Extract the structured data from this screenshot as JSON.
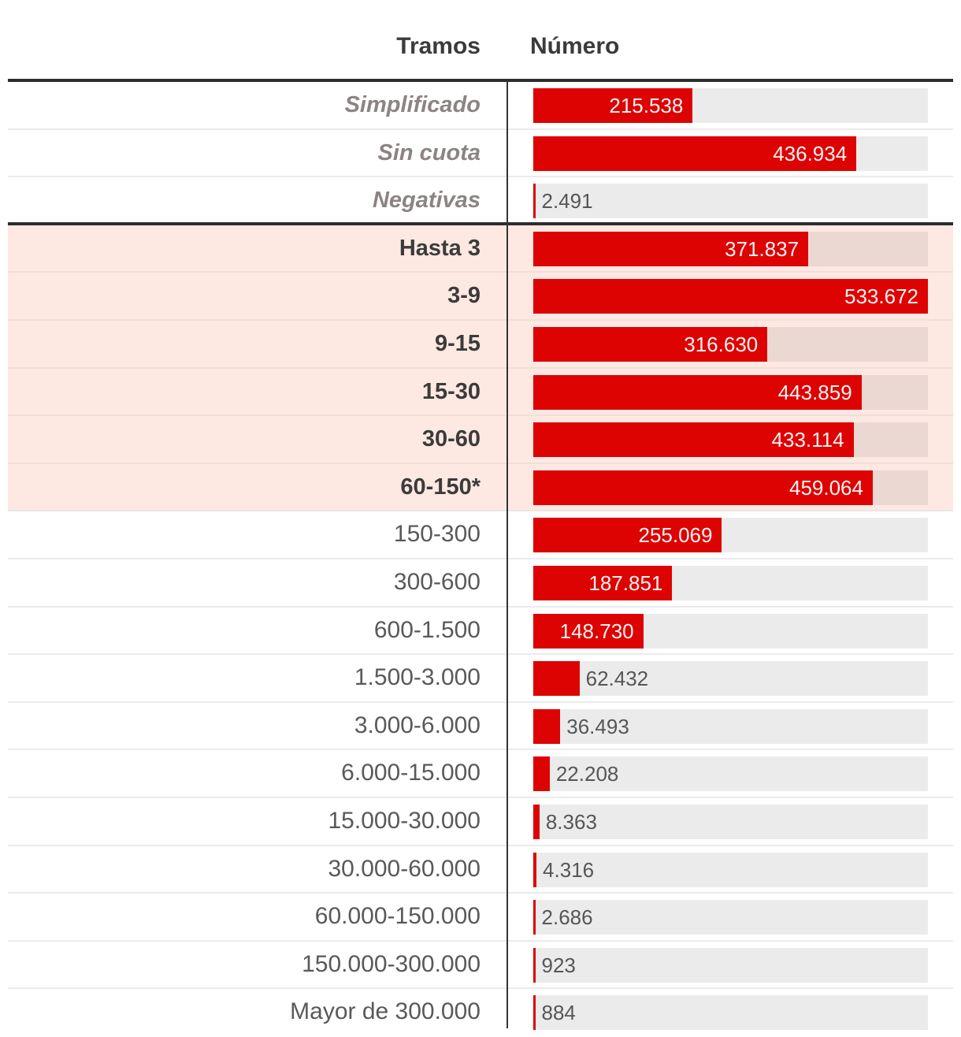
{
  "header": {
    "tramos": "Tramos",
    "numero": "Número"
  },
  "chart_data": {
    "type": "bar",
    "orientation": "horizontal",
    "columns": [
      "Tramos",
      "Número"
    ],
    "x_max": 533672,
    "legend": "none",
    "grid": "off",
    "colors": {
      "bar": "#dd0303",
      "track": "#ebebeb",
      "track_highlight": "#ecd8d2",
      "row_highlight_bg": "#fde8e2",
      "value_inside": "#ffffff",
      "value_outside": "#565656",
      "label_muted": "#8c8382",
      "label_dark": "#3b3b3b",
      "label_normal": "#595959",
      "rule_dark": "#2d2d2d",
      "separator": "#ebebeb",
      "separator_highlight": "#f2ded8"
    },
    "rows": [
      {
        "label": "Simplificado",
        "value": 215538,
        "display": "215.538",
        "group": "muted"
      },
      {
        "label": "Sin cuota",
        "value": 436934,
        "display": "436.934",
        "group": "muted"
      },
      {
        "label": "Negativas",
        "value": 2491,
        "display": "2.491",
        "group": "muted"
      },
      {
        "label": "Hasta 3",
        "value": 371837,
        "display": "371.837",
        "group": "highlight"
      },
      {
        "label": "3-9",
        "value": 533672,
        "display": "533.672",
        "group": "highlight"
      },
      {
        "label": "9-15",
        "value": 316630,
        "display": "316.630",
        "group": "highlight"
      },
      {
        "label": "15-30",
        "value": 443859,
        "display": "443.859",
        "group": "highlight"
      },
      {
        "label": "30-60",
        "value": 433114,
        "display": "433.114",
        "group": "highlight"
      },
      {
        "label": "60-150*",
        "value": 459064,
        "display": "459.064",
        "group": "highlight"
      },
      {
        "label": "150-300",
        "value": 255069,
        "display": "255.069",
        "group": "normal"
      },
      {
        "label": "300-600",
        "value": 187851,
        "display": "187.851",
        "group": "normal"
      },
      {
        "label": "600-1.500",
        "value": 148730,
        "display": "148.730",
        "group": "normal"
      },
      {
        "label": "1.500-3.000",
        "value": 62432,
        "display": "62.432",
        "group": "normal"
      },
      {
        "label": "3.000-6.000",
        "value": 36493,
        "display": "36.493",
        "group": "normal"
      },
      {
        "label": "6.000-15.000",
        "value": 22208,
        "display": "22.208",
        "group": "normal"
      },
      {
        "label": "15.000-30.000",
        "value": 8363,
        "display": "8.363",
        "group": "normal"
      },
      {
        "label": "30.000-60.000",
        "value": 4316,
        "display": "4.316",
        "group": "normal"
      },
      {
        "label": "60.000-150.000",
        "value": 2686,
        "display": "2.686",
        "group": "normal"
      },
      {
        "label": "150.000-300.000",
        "value": 923,
        "display": "923",
        "group": "normal"
      },
      {
        "label": "Mayor de 300.000",
        "value": 884,
        "display": "884",
        "group": "normal"
      }
    ]
  }
}
